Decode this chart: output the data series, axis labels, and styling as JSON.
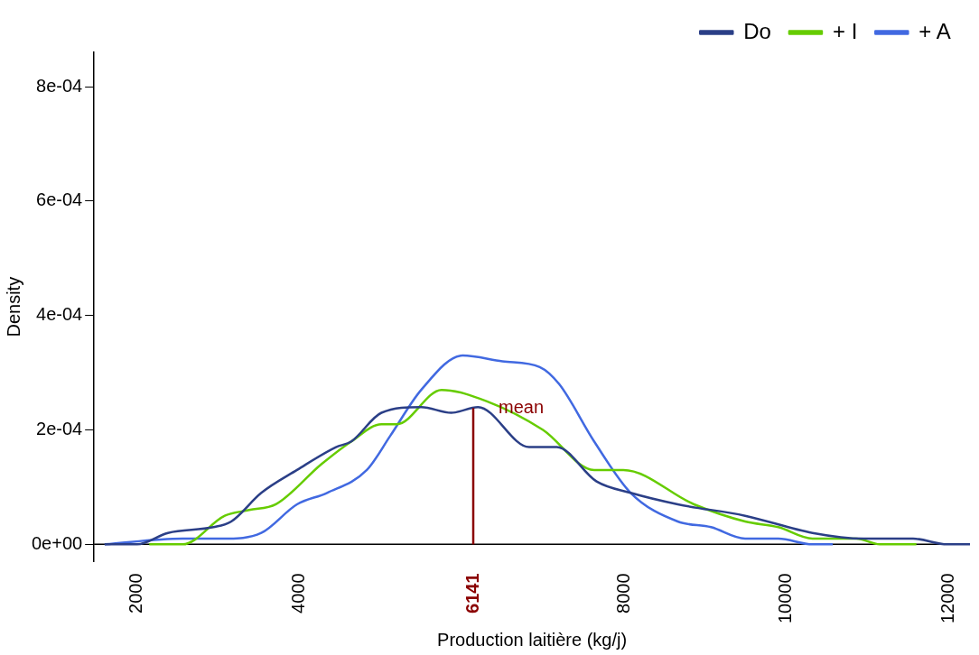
{
  "chart_data": {
    "type": "line",
    "xlabel": "Production laitière (kg/j)",
    "ylabel": "Density",
    "xlim": [
      1470,
      12260
    ],
    "xticks": [
      2000,
      4000,
      6141,
      8000,
      10000,
      12000
    ],
    "ylim": [
      -3e-05,
      0.00086
    ],
    "yticks": [
      {
        "value": 0,
        "label": "0e+00"
      },
      {
        "value": 0.0002,
        "label": "2e-04"
      },
      {
        "value": 0.0004,
        "label": "4e-04"
      },
      {
        "value": 0.0006,
        "label": "6e-04"
      },
      {
        "value": 0.0008,
        "label": "8e-04"
      }
    ],
    "grid": false,
    "legend": "top right",
    "ref_lines": [
      {
        "axis": "x",
        "value": 6141,
        "label": "mean",
        "color": "#8b0000"
      }
    ],
    "series": [
      {
        "name": "Do",
        "color": "#2b3f87",
        "x": [
          1600,
          2000,
          2380,
          2940,
          3160,
          3530,
          3970,
          4450,
          4640,
          5010,
          5500,
          5870,
          6200,
          6830,
          7170,
          7660,
          8080,
          8660,
          9490,
          10320,
          10950,
          11560,
          11980,
          12260
        ],
        "values": [
          0,
          0,
          2e-05,
          3e-05,
          4e-05,
          9e-05,
          0.00013,
          0.00017,
          0.00018,
          0.00023,
          0.00024,
          0.00023,
          0.00024,
          0.00017,
          0.00017,
          0.00011,
          9e-05,
          7e-05,
          5e-05,
          2e-05,
          1e-05,
          1e-05,
          0,
          0
        ]
      },
      {
        "name": "+ I",
        "color": "#66cc00",
        "x": [
          2150,
          2560,
          3080,
          3380,
          3710,
          4270,
          4640,
          5010,
          5200,
          5750,
          6310,
          7000,
          7630,
          7990,
          8860,
          9490,
          9900,
          10320,
          10860,
          11150,
          11600
        ],
        "values": [
          0,
          0,
          5e-05,
          6e-05,
          7e-05,
          0.00014,
          0.00018,
          0.00021,
          0.00021,
          0.00027,
          0.00025,
          0.0002,
          0.00013,
          0.00013,
          7e-05,
          4e-05,
          3e-05,
          1e-05,
          1e-05,
          0,
          0
        ]
      },
      {
        "name": "+ A",
        "color": "#4169e1",
        "x": [
          1600,
          2560,
          3080,
          3530,
          3970,
          4340,
          4830,
          5120,
          5500,
          6010,
          6500,
          6960,
          7200,
          7630,
          8080,
          8660,
          9070,
          9490,
          9900,
          10320,
          10570
        ],
        "values": [
          0,
          1e-05,
          1e-05,
          2e-05,
          7e-05,
          9e-05,
          0.00013,
          0.00019,
          0.00027,
          0.00033,
          0.00032,
          0.00031,
          0.00028,
          0.00018,
          9e-05,
          4e-05,
          3e-05,
          1e-05,
          1e-05,
          0,
          0
        ]
      }
    ]
  }
}
